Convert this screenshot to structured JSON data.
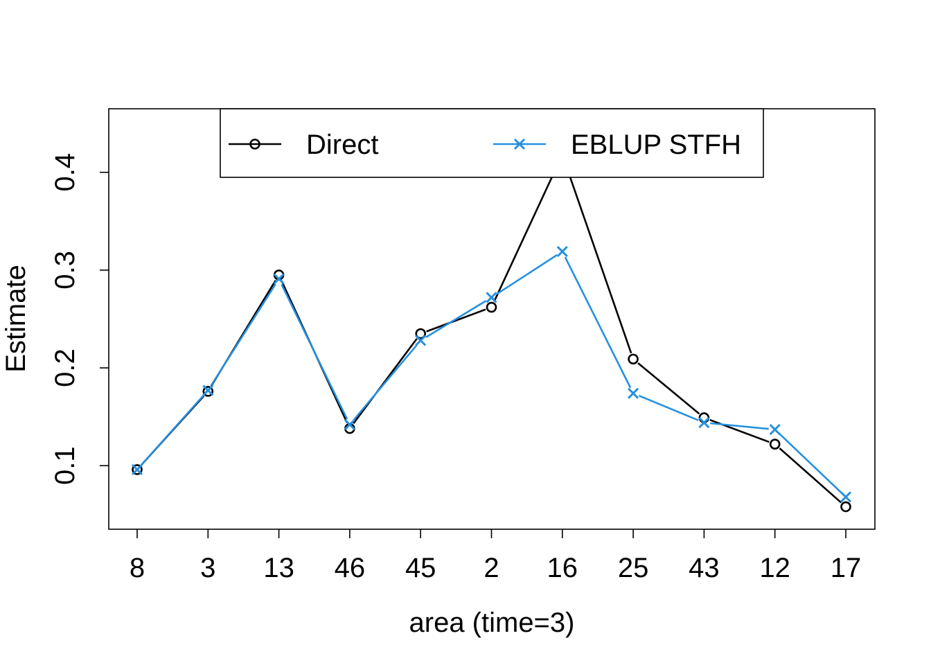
{
  "chart_data": {
    "type": "line",
    "categories": [
      "8",
      "3",
      "13",
      "46",
      "45",
      "2",
      "16",
      "25",
      "43",
      "12",
      "17"
    ],
    "xlabel": "area (time=3)",
    "ylabel": "Estimate",
    "ylim": [
      0.035,
      0.465
    ],
    "yticks": [
      "0.1",
      "0.2",
      "0.3",
      "0.4"
    ],
    "grid": false,
    "legend": {
      "position": "top",
      "columns": 2
    },
    "series": [
      {
        "name": "Direct",
        "marker": "circle",
        "color": "#000000",
        "values": [
          0.096,
          0.176,
          0.295,
          0.138,
          0.235,
          0.262,
          0.418,
          0.209,
          0.149,
          0.122,
          0.058
        ]
      },
      {
        "name": "EBLUP STFH",
        "marker": "cross",
        "color": "#2590DF",
        "values": [
          0.096,
          0.177,
          0.291,
          0.142,
          0.228,
          0.272,
          0.319,
          0.174,
          0.144,
          0.137,
          0.068
        ]
      }
    ]
  }
}
